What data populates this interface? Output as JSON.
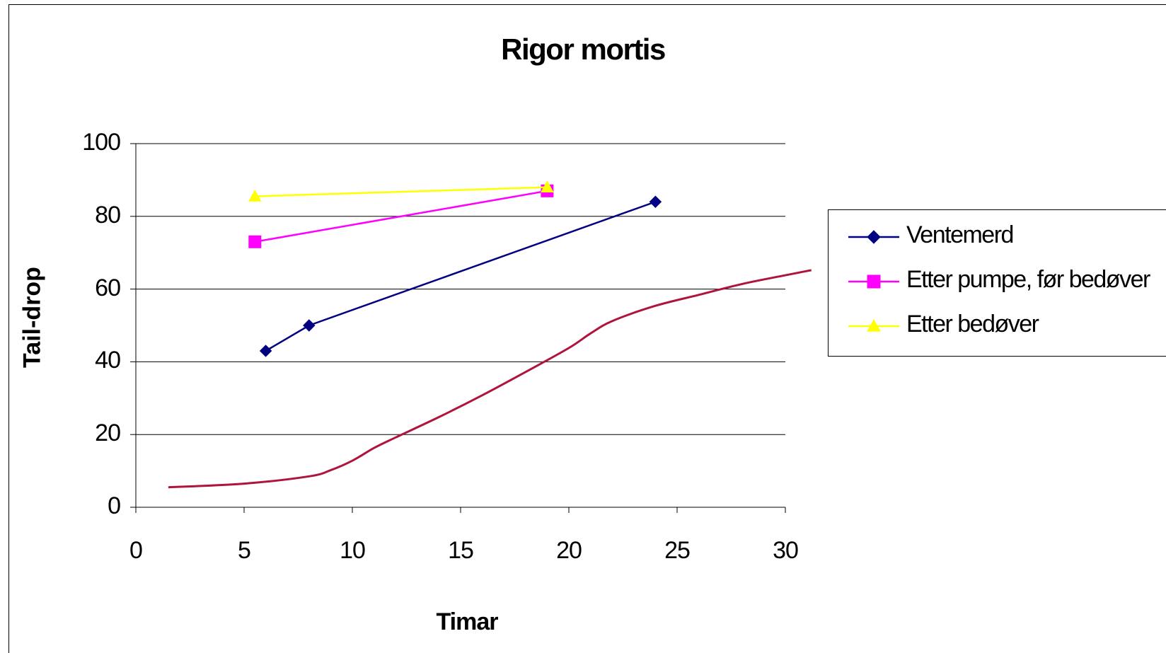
{
  "chart_data": {
    "type": "line",
    "title": "Rigor mortis",
    "xlabel": "Timar",
    "ylabel": "Tail-drop",
    "xlim": [
      0,
      30
    ],
    "ylim": [
      0,
      100
    ],
    "x_ticks": [
      "0",
      "5",
      "10",
      "15",
      "20",
      "25",
      "30"
    ],
    "y_ticks": [
      "0",
      "20",
      "40",
      "60",
      "80",
      "100"
    ],
    "grid": "horizontal",
    "legend_position": "right",
    "series": [
      {
        "name": "Ventemerd",
        "color": "#000080",
        "marker": "diamond",
        "x": [
          6,
          8,
          24
        ],
        "y": [
          43,
          50,
          84
        ]
      },
      {
        "name": "Etter pumpe, før bedøver",
        "color": "#FF00FF",
        "marker": "square",
        "x": [
          5.5,
          19
        ],
        "y": [
          73,
          87
        ]
      },
      {
        "name": "Etter bedøver",
        "color": "#FFFF00",
        "marker": "triangle",
        "x": [
          5.5,
          19
        ],
        "y": [
          85.5,
          88
        ]
      },
      {
        "color": "#B0143C",
        "marker": "none",
        "smooth": true,
        "x": [
          1.5,
          5,
          8,
          9,
          10,
          11,
          12,
          14,
          16,
          18,
          20,
          21,
          22,
          24,
          26,
          28,
          30,
          31.2
        ],
        "y": [
          5.5,
          6.5,
          8.5,
          10.2,
          12.8,
          16.3,
          19.2,
          24.8,
          30.8,
          37.2,
          43.8,
          47.8,
          51.2,
          55.4,
          58.4,
          61.4,
          63.8,
          65.2
        ]
      }
    ]
  }
}
